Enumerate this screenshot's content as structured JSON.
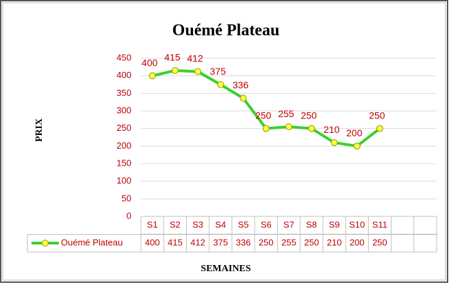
{
  "chart_data": {
    "type": "line",
    "title": "Ouémé Plateau",
    "y_label": "PRIX",
    "x_label": "SEMAINES",
    "categories": [
      "S1",
      "S2",
      "S3",
      "S4",
      "S5",
      "S6",
      "S7",
      "S8",
      "S9",
      "S10",
      "S11",
      null,
      null
    ],
    "series": [
      {
        "name": "Ouémé Plateau",
        "color": "#3ccf2e",
        "marker_color": "#ffff33",
        "values": [
          400,
          415,
          412,
          375,
          336,
          250,
          255,
          250,
          210,
          200,
          250,
          null,
          null
        ]
      }
    ],
    "ylim": [
      0,
      450
    ],
    "yticks": [
      0,
      50,
      100,
      150,
      200,
      250,
      300,
      350,
      400,
      450
    ],
    "grid": true,
    "data_table": true
  }
}
